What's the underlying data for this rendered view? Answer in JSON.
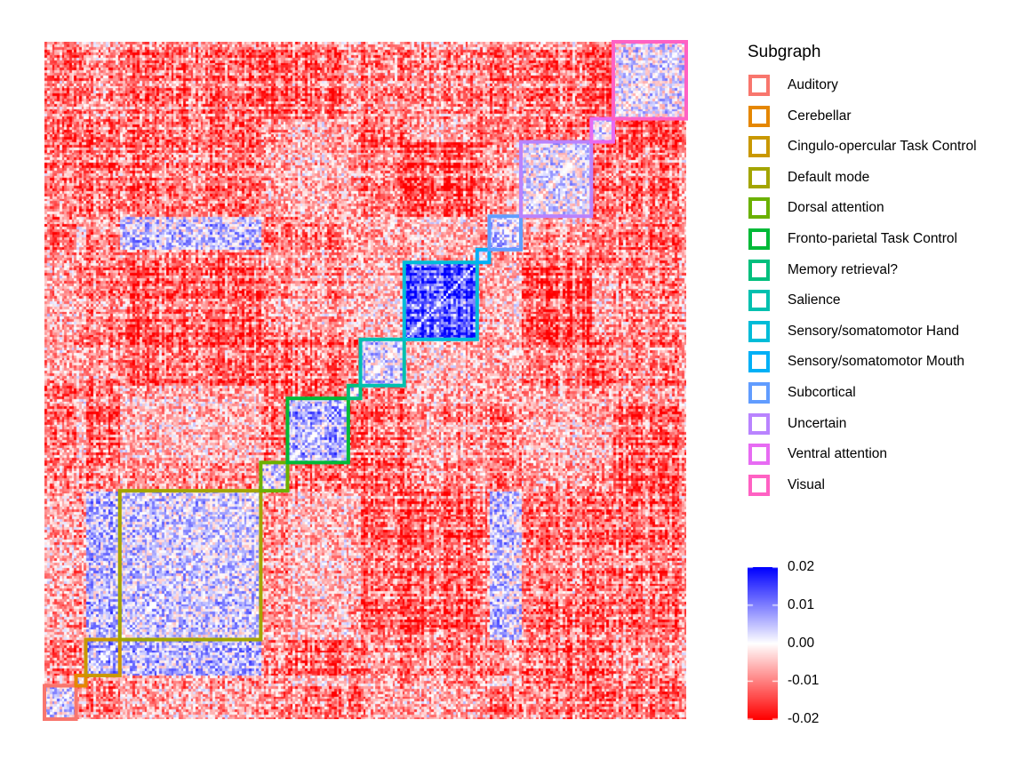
{
  "chart_data": {
    "type": "heatmap",
    "description": "Node-by-node matrix with colored boxes outlining subgraph blocks along the diagonal",
    "legend": {
      "title": "Subgraph",
      "placement": "right",
      "entries": [
        {
          "name": "Auditory",
          "color": "#F8766D"
        },
        {
          "name": "Cerebellar",
          "color": "#E58700"
        },
        {
          "name": "Cingulo-opercular Task Control",
          "color": "#C99800"
        },
        {
          "name": "Default mode",
          "color": "#A3A500"
        },
        {
          "name": "Dorsal attention",
          "color": "#6BB100"
        },
        {
          "name": "Fronto-parietal Task Control",
          "color": "#00BA38"
        },
        {
          "name": "Memory retrieval?",
          "color": "#00BF7D"
        },
        {
          "name": "Salience",
          "color": "#00C0AF"
        },
        {
          "name": "Sensory/somatomotor Hand",
          "color": "#00BCD8"
        },
        {
          "name": "Sensory/somatomotor Mouth",
          "color": "#00B0F6"
        },
        {
          "name": "Subcortical",
          "color": "#619CFF"
        },
        {
          "name": "Uncertain",
          "color": "#B983FF"
        },
        {
          "name": "Ventral attention",
          "color": "#E76BF3"
        },
        {
          "name": "Visual",
          "color": "#FF61C3"
        }
      ]
    },
    "blocks": [
      {
        "subgraph": "Auditory",
        "start": 0,
        "end": 13
      },
      {
        "subgraph": "Cerebellar",
        "start": 13,
        "end": 17
      },
      {
        "subgraph": "Cingulo-opercular Task Control",
        "start": 17,
        "end": 31
      },
      {
        "subgraph": "Default mode",
        "start": 31,
        "end": 89
      },
      {
        "subgraph": "Dorsal attention",
        "start": 89,
        "end": 100
      },
      {
        "subgraph": "Fronto-parietal Task Control",
        "start": 100,
        "end": 125
      },
      {
        "subgraph": "Memory retrieval?",
        "start": 125,
        "end": 130
      },
      {
        "subgraph": "Salience",
        "start": 130,
        "end": 148
      },
      {
        "subgraph": "Sensory/somatomotor Hand",
        "start": 148,
        "end": 178
      },
      {
        "subgraph": "Sensory/somatomotor Mouth",
        "start": 178,
        "end": 183
      },
      {
        "subgraph": "Subcortical",
        "start": 183,
        "end": 196
      },
      {
        "subgraph": "Uncertain",
        "start": 196,
        "end": 225
      },
      {
        "subgraph": "Ventral attention",
        "start": 225,
        "end": 234
      },
      {
        "subgraph": "Visual",
        "start": 234,
        "end": 264
      }
    ],
    "n_nodes": 264,
    "colorbar": {
      "min": -0.02,
      "max": 0.02,
      "low_color": "#FF0000",
      "mid_color": "#FFFFFF",
      "high_color": "#0000FF",
      "ticks": [
        {
          "value": 0.02,
          "label": "0.02"
        },
        {
          "value": 0.01,
          "label": "0.01"
        },
        {
          "value": 0.0,
          "label": "0.00"
        },
        {
          "value": -0.01,
          "label": "-0.01"
        },
        {
          "value": -0.02,
          "label": "-0.02"
        }
      ]
    }
  }
}
